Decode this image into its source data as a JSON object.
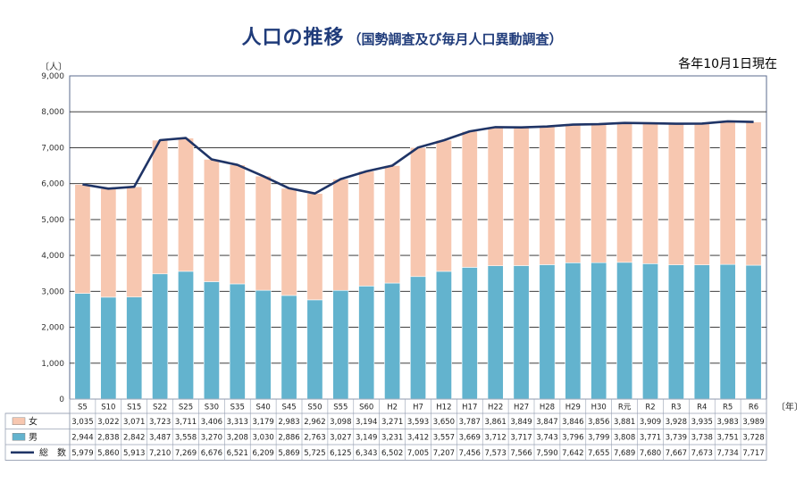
{
  "title": "人口の推移",
  "subtitle": "（国勢調査及び毎月人口異動調査）",
  "note": "各年10月1日現在",
  "colors": {
    "female": "#f7c7b0",
    "male": "#63b3ce",
    "total": "#1f3466",
    "title": "#1f3b7a"
  },
  "chart_data": {
    "type": "bar",
    "stacked": true,
    "y_unit": "〔人〕",
    "x_unit": "〔年〕",
    "ylim": [
      0,
      9000
    ],
    "yticks": [
      0,
      1000,
      2000,
      3000,
      4000,
      5000,
      6000,
      7000,
      8000,
      9000
    ],
    "ytick_labels": [
      "0",
      "1,000",
      "2,000",
      "3,000",
      "4,000",
      "5,000",
      "6,000",
      "7,000",
      "8,000",
      "9,000"
    ],
    "grid": true,
    "categories": [
      "S5",
      "S10",
      "S15",
      "S22",
      "S25",
      "S30",
      "S35",
      "S40",
      "S45",
      "S50",
      "S55",
      "S60",
      "H2",
      "H7",
      "H12",
      "H17",
      "H22",
      "H27",
      "H28",
      "H29",
      "H30",
      "R元",
      "R2",
      "R3",
      "R4",
      "R5",
      "R6"
    ],
    "series": [
      {
        "name": "女",
        "type": "bar",
        "values": [
          3035,
          3022,
          3071,
          3723,
          3711,
          3406,
          3313,
          3179,
          2983,
          2962,
          3098,
          3194,
          3271,
          3593,
          3650,
          3787,
          3861,
          3849,
          3847,
          3846,
          3856,
          3881,
          3909,
          3928,
          3935,
          3983,
          3989
        ],
        "labels": [
          "3,035",
          "3,022",
          "3,071",
          "3,723",
          "3,711",
          "3,406",
          "3,313",
          "3,179",
          "2,983",
          "2,962",
          "3,098",
          "3,194",
          "3,271",
          "3,593",
          "3,650",
          "3,787",
          "3,861",
          "3,849",
          "3,847",
          "3,846",
          "3,856",
          "3,881",
          "3,909",
          "3,928",
          "3,935",
          "3,983",
          "3,989"
        ]
      },
      {
        "name": "男",
        "type": "bar",
        "values": [
          2944,
          2838,
          2842,
          3487,
          3558,
          3270,
          3208,
          3030,
          2886,
          2763,
          3027,
          3149,
          3231,
          3412,
          3557,
          3669,
          3712,
          3717,
          3743,
          3796,
          3799,
          3808,
          3771,
          3739,
          3738,
          3751,
          3728
        ],
        "labels": [
          "2,944",
          "2,838",
          "2,842",
          "3,487",
          "3,558",
          "3,270",
          "3,208",
          "3,030",
          "2,886",
          "2,763",
          "3,027",
          "3,149",
          "3,231",
          "3,412",
          "3,557",
          "3,669",
          "3,712",
          "3,717",
          "3,743",
          "3,796",
          "3,799",
          "3,808",
          "3,771",
          "3,739",
          "3,738",
          "3,751",
          "3,728"
        ]
      },
      {
        "name": "総　数",
        "type": "line",
        "values": [
          5979,
          5860,
          5913,
          7210,
          7269,
          6676,
          6521,
          6209,
          5869,
          5725,
          6125,
          6343,
          6502,
          7005,
          7207,
          7456,
          7573,
          7566,
          7590,
          7642,
          7655,
          7689,
          7680,
          7667,
          7673,
          7734,
          7717
        ],
        "labels": [
          "5,979",
          "5,860",
          "5,913",
          "7,210",
          "7,269",
          "6,676",
          "6,521",
          "6,209",
          "5,869",
          "5,725",
          "6,125",
          "6,343",
          "6,502",
          "7,005",
          "7,207",
          "7,456",
          "7,573",
          "7,566",
          "7,590",
          "7,642",
          "7,655",
          "7,689",
          "7,680",
          "7,667",
          "7,673",
          "7,734",
          "7,717"
        ]
      }
    ]
  }
}
